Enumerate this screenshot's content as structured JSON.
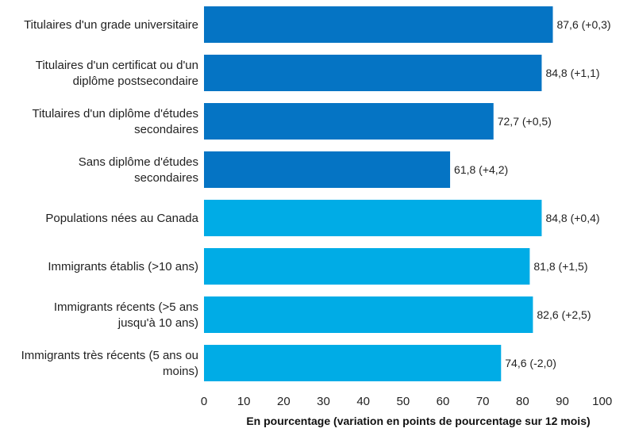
{
  "chart_data": {
    "type": "bar",
    "orientation": "horizontal",
    "categories": [
      "Titulaires d'un grade universitaire",
      "Titulaires d'un certificat ou d'un diplôme postsecondaire",
      "Titulaires d'un diplôme d'études secondaires",
      "Sans diplôme d'études secondaires",
      "Populations nées au Canada",
      "Immigrants établis (>10 ans)",
      "Immigrants récents (>5 ans jusqu'à 10 ans)",
      "Immigrants très récents (5 ans ou moins)"
    ],
    "category_lines": [
      [
        "Titulaires d'un grade universitaire"
      ],
      [
        "Titulaires d'un certificat ou d'un",
        "diplôme postsecondaire"
      ],
      [
        "Titulaires d'un diplôme d'études",
        "secondaires"
      ],
      [
        "Sans diplôme d'études",
        "secondaires"
      ],
      [
        "Populations nées au Canada"
      ],
      [
        "Immigrants établis (>10 ans)"
      ],
      [
        "Immigrants récents (>5 ans",
        "jusqu'à 10 ans)"
      ],
      [
        "Immigrants très récents (5 ans ou",
        "moins)"
      ]
    ],
    "values": [
      87.6,
      84.8,
      72.7,
      61.8,
      84.8,
      81.8,
      82.6,
      74.6
    ],
    "data_labels": [
      "87,6 (+0,3)",
      "84,8 (+1,1)",
      "72,7 (+0,5)",
      "61,8 (+4,2)",
      "84,8 (+0,4)",
      "81,8 (+1,5)",
      "82,6 (+2,5)",
      "74,6 (-2,0)"
    ],
    "changes": [
      0.3,
      1.1,
      0.5,
      4.2,
      0.4,
      1.5,
      2.5,
      -2.0
    ],
    "bar_colors": [
      "#0574c4",
      "#0574c4",
      "#0574c4",
      "#0574c4",
      "#00ace6",
      "#00ace6",
      "#00ace6",
      "#00ace6"
    ],
    "xlabel": "En pourcentage (variation en points de pourcentage sur 12 mois)",
    "xlim": [
      0,
      100
    ],
    "xticks": [
      "0",
      "10",
      "20",
      "30",
      "40",
      "50",
      "60",
      "70",
      "80",
      "90",
      "100"
    ],
    "grid": false,
    "legend": false
  }
}
